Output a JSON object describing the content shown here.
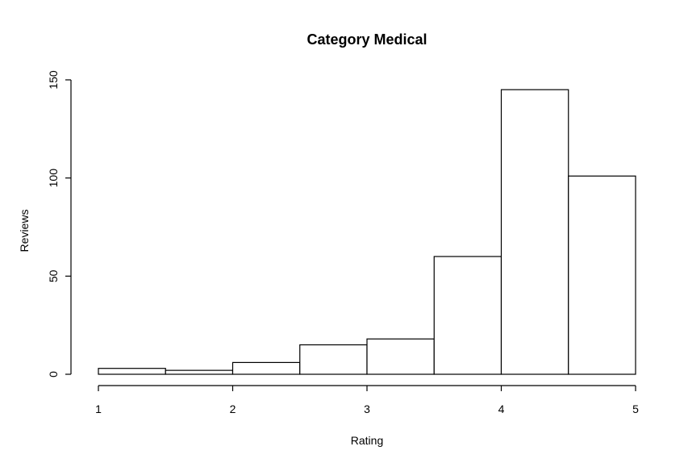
{
  "chart_data": {
    "type": "bar",
    "title": "Category Medical",
    "xlabel": "Rating",
    "ylabel": "Reviews",
    "xlim": [
      1,
      5
    ],
    "ylim": [
      0,
      150
    ],
    "x_ticks": [
      1,
      2,
      3,
      4,
      5
    ],
    "y_ticks": [
      0,
      50,
      100,
      150
    ],
    "bins": [
      {
        "start": 1.0,
        "end": 1.5,
        "value": 3
      },
      {
        "start": 1.5,
        "end": 2.0,
        "value": 2
      },
      {
        "start": 2.0,
        "end": 2.5,
        "value": 6
      },
      {
        "start": 2.5,
        "end": 3.0,
        "value": 15
      },
      {
        "start": 3.0,
        "end": 3.5,
        "value": 18
      },
      {
        "start": 3.5,
        "end": 4.0,
        "value": 60
      },
      {
        "start": 4.0,
        "end": 4.5,
        "value": 145
      },
      {
        "start": 4.5,
        "end": 5.0,
        "value": 101
      }
    ],
    "grid": false,
    "bar_fill": "#ffffff",
    "bar_stroke": "#000000"
  }
}
